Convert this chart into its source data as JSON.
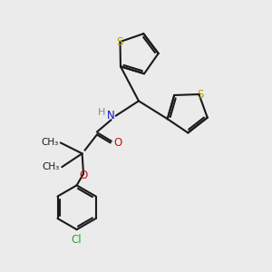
{
  "bg_color": "#ebebeb",
  "bond_color": "#1a1a1a",
  "bond_width": 1.5,
  "S_color": "#b8a000",
  "N_color": "#1010dd",
  "O_color": "#cc1111",
  "Cl_color": "#22aa22",
  "font_size": 8.5,
  "xlim": [
    0,
    10
  ],
  "ylim": [
    0,
    10
  ]
}
